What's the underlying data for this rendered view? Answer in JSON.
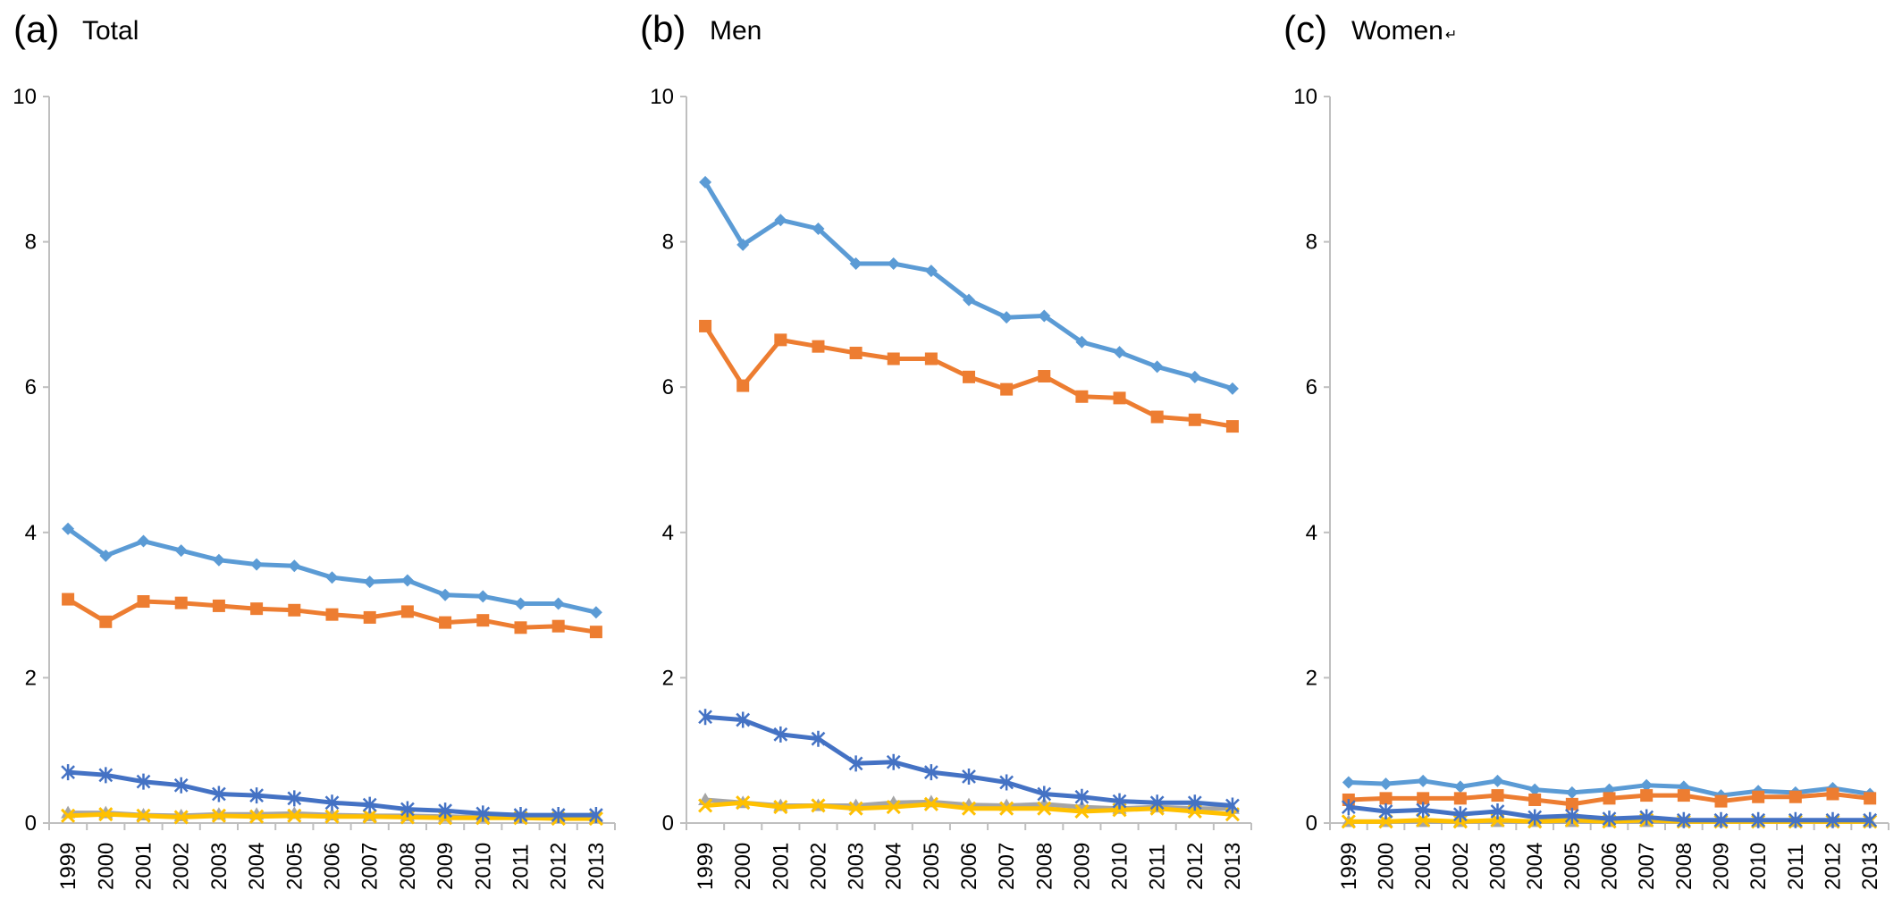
{
  "colors": {
    "blue_diamond": "#5b9bd5",
    "orange_square": "#ed7d31",
    "gray_triangle": "#a5a5a5",
    "yellow_x": "#ffc000",
    "navy_star": "#4472c4",
    "axis": "#bfbfbf"
  },
  "chart_data": [
    {
      "type": "line",
      "panel_letter": "(a)",
      "panel_name": "Total",
      "ylim": [
        0,
        10
      ],
      "yticks": [
        0,
        2,
        4,
        6,
        8,
        10
      ],
      "grid": false,
      "x": [
        "1999",
        "2000",
        "2001",
        "2002",
        "2003",
        "2004",
        "2005",
        "2006",
        "2007",
        "2008",
        "2009",
        "2010",
        "2011",
        "2012",
        "2013"
      ],
      "series": [
        {
          "marker": "diamond",
          "color": "#5b9bd5",
          "values": [
            4.05,
            3.68,
            3.88,
            3.75,
            3.62,
            3.56,
            3.54,
            3.38,
            3.32,
            3.34,
            3.14,
            3.12,
            3.02,
            3.02,
            2.9
          ]
        },
        {
          "marker": "square",
          "color": "#ed7d31",
          "values": [
            3.08,
            2.77,
            3.05,
            3.03,
            2.99,
            2.95,
            2.93,
            2.87,
            2.83,
            2.91,
            2.76,
            2.79,
            2.69,
            2.71,
            2.63
          ]
        },
        {
          "marker": "triangle",
          "color": "#a5a5a5",
          "values": [
            0.14,
            0.14,
            0.11,
            0.1,
            0.12,
            0.12,
            0.13,
            0.11,
            0.1,
            0.1,
            0.09,
            0.08,
            0.08,
            0.08,
            0.08
          ]
        },
        {
          "marker": "x",
          "color": "#ffc000",
          "values": [
            0.1,
            0.12,
            0.1,
            0.08,
            0.1,
            0.09,
            0.1,
            0.09,
            0.09,
            0.08,
            0.07,
            0.07,
            0.07,
            0.06,
            0.06
          ]
        },
        {
          "marker": "star",
          "color": "#4472c4",
          "values": [
            0.7,
            0.66,
            0.57,
            0.52,
            0.4,
            0.38,
            0.34,
            0.28,
            0.25,
            0.19,
            0.17,
            0.13,
            0.11,
            0.11,
            0.11
          ]
        }
      ]
    },
    {
      "type": "line",
      "panel_letter": "(b)",
      "panel_name": "Men",
      "ylim": [
        0,
        10
      ],
      "yticks": [
        0,
        2,
        4,
        6,
        8,
        10
      ],
      "grid": false,
      "x": [
        "1999",
        "2000",
        "2001",
        "2002",
        "2003",
        "2004",
        "2005",
        "2006",
        "2007",
        "2008",
        "2009",
        "2010",
        "2011",
        "2012",
        "2013"
      ],
      "series": [
        {
          "marker": "diamond",
          "color": "#5b9bd5",
          "values": [
            8.82,
            7.96,
            8.3,
            8.18,
            7.7,
            7.7,
            7.6,
            7.2,
            6.96,
            6.98,
            6.62,
            6.48,
            6.28,
            6.14,
            5.98
          ]
        },
        {
          "marker": "square",
          "color": "#ed7d31",
          "values": [
            6.84,
            6.02,
            6.65,
            6.56,
            6.47,
            6.39,
            6.39,
            6.14,
            5.97,
            6.15,
            5.87,
            5.85,
            5.59,
            5.55,
            5.46
          ]
        },
        {
          "marker": "triangle",
          "color": "#a5a5a5",
          "values": [
            0.32,
            0.28,
            0.24,
            0.24,
            0.24,
            0.28,
            0.29,
            0.25,
            0.24,
            0.26,
            0.22,
            0.2,
            0.22,
            0.2,
            0.2
          ]
        },
        {
          "marker": "x",
          "color": "#ffc000",
          "values": [
            0.24,
            0.28,
            0.22,
            0.24,
            0.2,
            0.22,
            0.26,
            0.2,
            0.2,
            0.2,
            0.16,
            0.18,
            0.2,
            0.16,
            0.12
          ]
        },
        {
          "marker": "star",
          "color": "#4472c4",
          "values": [
            1.46,
            1.42,
            1.22,
            1.16,
            0.82,
            0.84,
            0.7,
            0.64,
            0.56,
            0.4,
            0.36,
            0.3,
            0.28,
            0.28,
            0.24
          ]
        }
      ]
    },
    {
      "type": "line",
      "panel_letter": "(c)",
      "panel_name": "Women",
      "panel_name_suffix": "↵",
      "ylim": [
        0,
        10
      ],
      "yticks": [
        0,
        2,
        4,
        6,
        8,
        10
      ],
      "grid": false,
      "x": [
        "1999",
        "2000",
        "2001",
        "2002",
        "2003",
        "2004",
        "2005",
        "2006",
        "2007",
        "2008",
        "2009",
        "2010",
        "2011",
        "2012",
        "2013"
      ],
      "series": [
        {
          "marker": "diamond",
          "color": "#5b9bd5",
          "values": [
            0.56,
            0.54,
            0.58,
            0.5,
            0.58,
            0.46,
            0.42,
            0.46,
            0.52,
            0.5,
            0.38,
            0.44,
            0.42,
            0.48,
            0.4
          ]
        },
        {
          "marker": "square",
          "color": "#ed7d31",
          "values": [
            0.32,
            0.34,
            0.34,
            0.34,
            0.38,
            0.32,
            0.26,
            0.34,
            0.38,
            0.38,
            0.3,
            0.36,
            0.36,
            0.4,
            0.34
          ]
        },
        {
          "marker": "triangle",
          "color": "#a5a5a5",
          "values": [
            0.02,
            0.02,
            0.02,
            0.02,
            0.02,
            0.02,
            0.02,
            0.02,
            0.02,
            0.02,
            0.02,
            0.02,
            0.02,
            0.02,
            0.02
          ]
        },
        {
          "marker": "x",
          "color": "#ffc000",
          "values": [
            0.02,
            0.02,
            0.04,
            0.02,
            0.04,
            0.02,
            0.04,
            0.02,
            0.04,
            0.02,
            0.02,
            0.02,
            0.02,
            0.02,
            0.02
          ]
        },
        {
          "marker": "star",
          "color": "#4472c4",
          "values": [
            0.22,
            0.16,
            0.18,
            0.12,
            0.16,
            0.08,
            0.1,
            0.06,
            0.08,
            0.04,
            0.04,
            0.04,
            0.04,
            0.04,
            0.04
          ]
        }
      ]
    }
  ]
}
